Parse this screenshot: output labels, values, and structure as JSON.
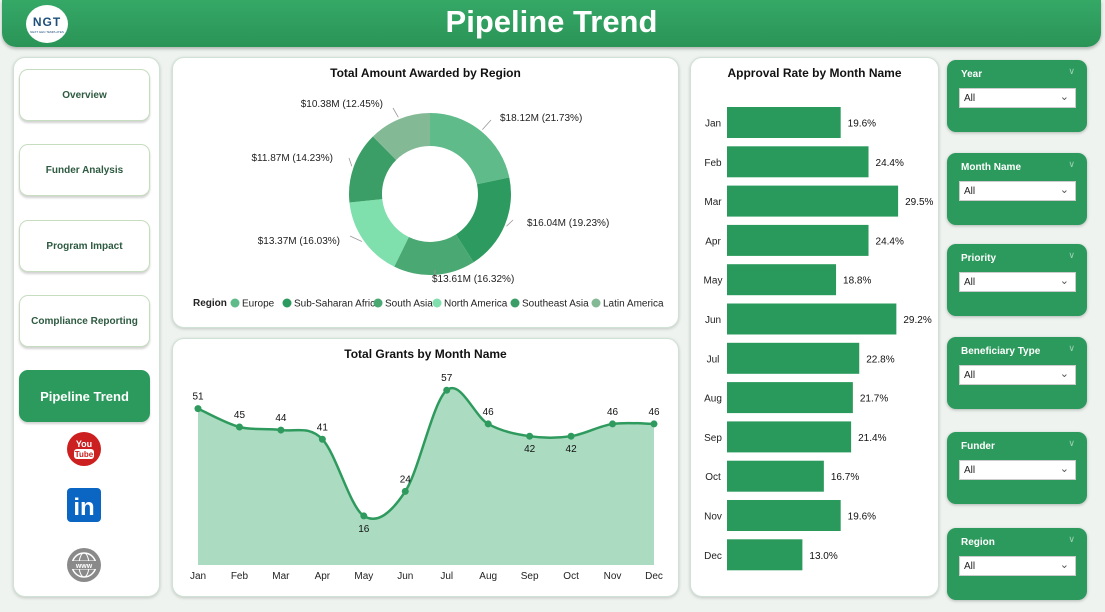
{
  "header": {
    "title": "Pipeline Trend",
    "logo_text": "NGT",
    "logo_tagline": "NEXT GEN TEMPLATES"
  },
  "nav": {
    "items": [
      {
        "label": "Overview",
        "active": false
      },
      {
        "label": "Funder Analysis",
        "active": false
      },
      {
        "label": "Program Impact",
        "active": false
      },
      {
        "label": "Compliance Reporting",
        "active": false
      },
      {
        "label": "Pipeline Trend",
        "active": true
      }
    ],
    "social": [
      "youtube-icon",
      "linkedin-icon",
      "website-icon"
    ],
    "youtube_text": [
      "You",
      "Tube"
    ],
    "linkedin_text": "in",
    "website_text": "www"
  },
  "donut": {
    "title": "Total Amount Awarded by Region",
    "legend_title": "Region"
  },
  "grants": {
    "title": "Total Grants by Month Name"
  },
  "approval": {
    "title": "Approval Rate by Month Name"
  },
  "slicers": [
    {
      "label": "Year",
      "value": "All"
    },
    {
      "label": "Month Name",
      "value": "All"
    },
    {
      "label": "Priority",
      "value": "All"
    },
    {
      "label": "Beneficiary Type",
      "value": "All"
    },
    {
      "label": "Funder",
      "value": "All"
    },
    {
      "label": "Region",
      "value": "All"
    }
  ],
  "colors": {
    "brand": "#2b9a5c",
    "donut": [
      "#5fbb8a",
      "#2d9b5f",
      "#4aa872",
      "#7fe0ae",
      "#3a9e66",
      "#84b996"
    ],
    "area_fill": "#abdcc1",
    "line": "#2e9a5d",
    "bar": "#2a9a5c"
  },
  "chart_data": [
    {
      "type": "pie",
      "title": "Total Amount Awarded by Region",
      "legend_title": "Region",
      "slices": [
        {
          "label": "Europe",
          "value": 18.12,
          "display": "$18.12M (21.73%)"
        },
        {
          "label": "Sub-Saharan Africa",
          "value": 16.04,
          "display": "$16.04M (19.23%)"
        },
        {
          "label": "South Asia",
          "value": 13.61,
          "display": "$13.61M (16.32%)"
        },
        {
          "label": "North America",
          "value": 13.37,
          "display": "$13.37M (16.03%)"
        },
        {
          "label": "Southeast Asia",
          "value": 11.87,
          "display": "$11.87M (14.23%)"
        },
        {
          "label": "Latin America",
          "value": 10.38,
          "display": "$10.38M (12.45%)"
        }
      ]
    },
    {
      "type": "area",
      "title": "Total Grants by Month Name",
      "categories": [
        "Jan",
        "Feb",
        "Mar",
        "Apr",
        "May",
        "Jun",
        "Jul",
        "Aug",
        "Sep",
        "Oct",
        "Nov",
        "Dec"
      ],
      "values": [
        51,
        45,
        44,
        41,
        16,
        24,
        57,
        46,
        42,
        42,
        46,
        46
      ]
    },
    {
      "type": "bar",
      "orientation": "horizontal",
      "title": "Approval Rate by Month Name",
      "categories": [
        "Jan",
        "Feb",
        "Mar",
        "Apr",
        "May",
        "Jun",
        "Jul",
        "Aug",
        "Sep",
        "Oct",
        "Nov",
        "Dec"
      ],
      "values": [
        19.6,
        24.4,
        29.5,
        24.4,
        18.8,
        29.2,
        22.8,
        21.7,
        21.4,
        16.7,
        19.6,
        13.0
      ],
      "labels": [
        "19.6%",
        "24.4%",
        "29.5%",
        "24.4%",
        "18.8%",
        "29.2%",
        "22.8%",
        "21.7%",
        "21.4%",
        "16.7%",
        "19.6%",
        "13.0%"
      ]
    }
  ]
}
